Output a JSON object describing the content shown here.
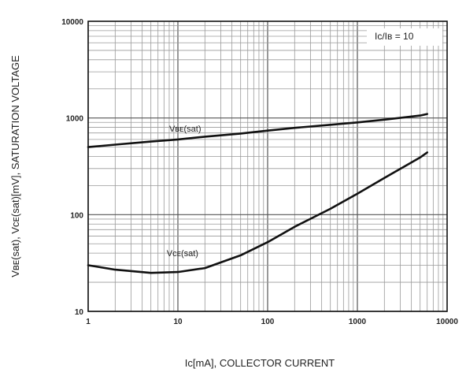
{
  "chart_data": {
    "type": "line",
    "x_scale": "log",
    "y_scale": "log",
    "xlim": [
      1,
      10000
    ],
    "ylim": [
      10,
      10000
    ],
    "grid": true,
    "x_ticks": [
      {
        "value": 1,
        "label": "1"
      },
      {
        "value": 10,
        "label": "10"
      },
      {
        "value": 100,
        "label": "100"
      },
      {
        "value": 1000,
        "label": "1000"
      },
      {
        "value": 10000,
        "label": "10000"
      }
    ],
    "y_ticks": [
      {
        "value": 10,
        "label": "10"
      },
      {
        "value": 100,
        "label": "100"
      },
      {
        "value": 1000,
        "label": "1000"
      },
      {
        "value": 10000,
        "label": "10000"
      }
    ],
    "xlabel": "Iᴄ[mA], COLLECTOR CURRENT",
    "ylabel": "Vʙᴇ(sat), Vᴄᴇ(sat)[mV], SATURATION VOLTAGE",
    "annotation": "Iᴄ/Iʙ = 10",
    "series": [
      {
        "name": "Vʙᴇ(sat)",
        "x": [
          1,
          2,
          5,
          10,
          20,
          50,
          100,
          200,
          500,
          1000,
          2000,
          5000,
          6000
        ],
        "y": [
          500,
          530,
          570,
          600,
          640,
          690,
          740,
          790,
          850,
          900,
          960,
          1060,
          1100
        ]
      },
      {
        "name": "Vᴄᴇ(sat)",
        "x": [
          1,
          2,
          5,
          10,
          20,
          50,
          100,
          200,
          500,
          1000,
          2000,
          5000,
          6000
        ],
        "y": [
          30,
          27,
          25,
          25.5,
          28,
          38,
          52,
          75,
          115,
          165,
          240,
          390,
          440
        ]
      }
    ]
  }
}
